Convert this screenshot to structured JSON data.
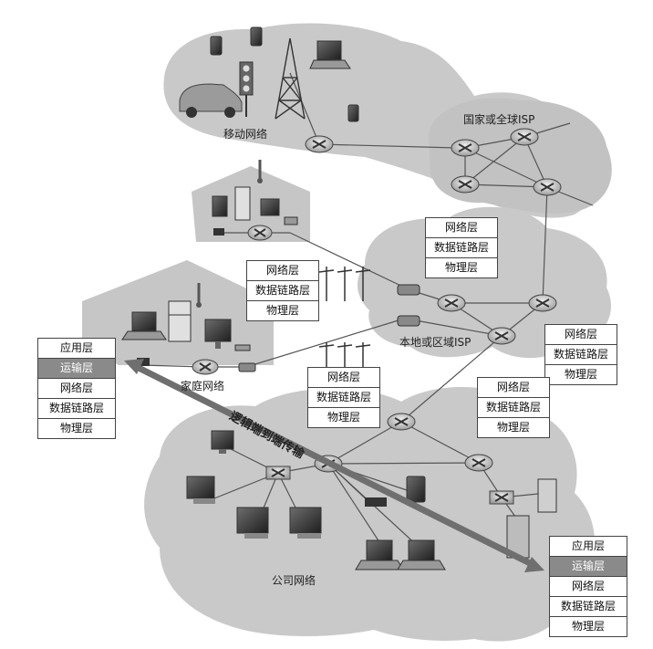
{
  "clouds": {
    "mobile": "移动网络",
    "global_isp": "国家或全球ISP",
    "regional_isp": "本地或区域ISP",
    "home": "家庭网络",
    "enterprise": "公司网络"
  },
  "arrow_label": "逻辑端到端传输",
  "stacks": {
    "host_left": [
      "应用层",
      "运输层",
      "网络层",
      "数据链路层",
      "物理层"
    ],
    "host_right": [
      "应用层",
      "运输层",
      "网络层",
      "数据链路层",
      "物理层"
    ],
    "router_a": [
      "网络层",
      "数据链路层",
      "物理层"
    ],
    "router_b": [
      "网络层",
      "数据链路层",
      "物理层"
    ],
    "router_c": [
      "网络层",
      "数据链路层",
      "物理层"
    ],
    "router_d": [
      "网络层",
      "数据链路层",
      "物理层"
    ],
    "router_e": [
      "网络层",
      "数据链路层",
      "物理层"
    ]
  },
  "highlight_layer": "运输层",
  "colors": {
    "cloud": "#c9c9c9",
    "highlight": "#8a8a8a",
    "arrow": "#6f6f6f"
  }
}
